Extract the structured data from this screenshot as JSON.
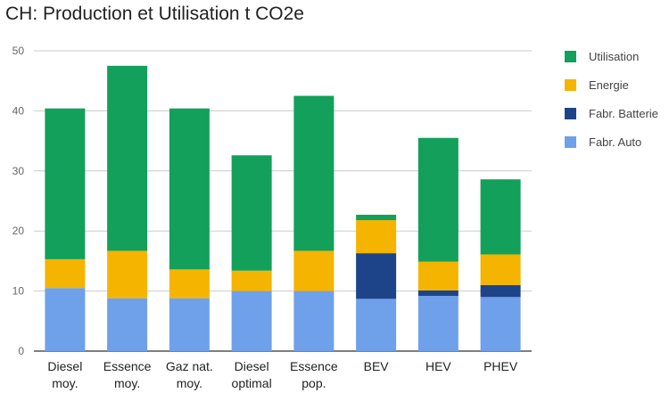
{
  "chart_data": {
    "type": "bar",
    "stacked": true,
    "title": "CH: Production et Utilisation t CO2e",
    "categories": [
      [
        "Diesel",
        "moy."
      ],
      [
        "Essence",
        "moy."
      ],
      [
        "Gaz nat.",
        "moy."
      ],
      [
        "Diesel",
        "optimal"
      ],
      [
        "Essence",
        "pop."
      ],
      [
        "BEV"
      ],
      [
        "HEV"
      ],
      [
        "PHEV"
      ]
    ],
    "series": [
      {
        "name": "Fabr. Auto",
        "color": "#6fa0ea",
        "values": [
          10.5,
          8.8,
          8.8,
          10.0,
          10.0,
          8.7,
          9.2,
          9.0
        ]
      },
      {
        "name": "Fabr. Batterie",
        "color": "#1d4489",
        "values": [
          0,
          0,
          0,
          0,
          0,
          7.6,
          0.9,
          2.0
        ]
      },
      {
        "name": "Energie",
        "color": "#f4b400",
        "values": [
          4.8,
          7.9,
          4.8,
          3.4,
          6.7,
          5.5,
          4.8,
          5.1
        ]
      },
      {
        "name": "Utilisation",
        "color": "#12a05a",
        "values": [
          25.1,
          30.8,
          26.8,
          19.2,
          25.8,
          0.9,
          20.6,
          12.5
        ]
      }
    ],
    "legend_order": [
      "Utilisation",
      "Energie",
      "Fabr. Batterie",
      "Fabr. Auto"
    ],
    "ylim": [
      0,
      50
    ],
    "yticks": [
      0,
      10,
      20,
      30,
      40,
      50
    ],
    "grid": true,
    "legend_position": "right"
  }
}
